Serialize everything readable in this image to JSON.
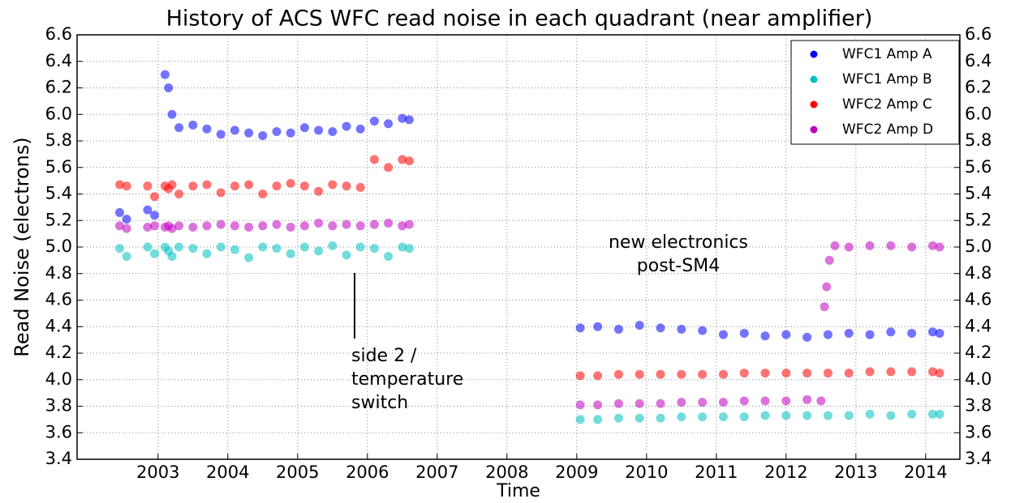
{
  "chart_data": {
    "type": "scatter",
    "title": "History of ACS WFC read noise in each quadrant (near amplifier)",
    "xlabel": "Time",
    "ylabel": "Read Noise (electrons)",
    "xlim": [
      2001.84,
      2014.49
    ],
    "xticks": [
      2003,
      2004,
      2005,
      2006,
      2007,
      2008,
      2009,
      2010,
      2011,
      2012,
      2013,
      2014
    ],
    "ylim": [
      3.4,
      6.6
    ],
    "yticks": [
      3.4,
      3.6,
      3.8,
      {
        "value": 4,
        "label": "4.0"
      },
      4.2,
      4.4,
      4.6,
      4.8,
      {
        "value": 5,
        "label": "5.0"
      },
      5.2,
      5.4,
      5.6,
      5.8,
      {
        "value": 6,
        "label": "6.0"
      },
      6.2,
      6.4,
      6.6
    ],
    "y2lim": [
      3.4,
      6.6
    ],
    "y2ticks": [
      3.4,
      3.6,
      3.8,
      {
        "value": 4,
        "label": "4.0"
      },
      4.2,
      4.4,
      4.6,
      4.8,
      {
        "value": 5,
        "label": "5.0"
      },
      5.2,
      5.4,
      5.6,
      5.8,
      {
        "value": 6,
        "label": "6.0"
      },
      6.2,
      6.4,
      6.6
    ],
    "grid": true,
    "legend": "upper right",
    "annotations": [
      [
        "new electronics",
        "post-SM4"
      ],
      [
        "side 2 /",
        "temperature",
        "switch"
      ]
    ],
    "series": [
      {
        "name": "WFC1 Amp A",
        "color": "#0000ff",
        "x": [
          2002.45,
          2002.55,
          2002.85,
          2002.95,
          2003.1,
          2003.15,
          2003.2,
          2003.3,
          2003.5,
          2003.7,
          2003.9,
          2004.1,
          2004.3,
          2004.5,
          2004.7,
          2004.9,
          2005.1,
          2005.3,
          2005.5,
          2005.7,
          2005.9,
          2006.1,
          2006.3,
          2006.5,
          2006.6,
          2009.05,
          2009.3,
          2009.6,
          2009.9,
          2010.2,
          2010.5,
          2010.8,
          2011.1,
          2011.4,
          2011.7,
          2012.0,
          2012.3,
          2012.6,
          2012.9,
          2013.2,
          2013.5,
          2013.8,
          2014.1,
          2014.2
        ],
        "values": [
          5.26,
          5.21,
          5.28,
          5.24,
          6.3,
          6.2,
          6.0,
          5.9,
          5.92,
          5.89,
          5.85,
          5.88,
          5.86,
          5.84,
          5.87,
          5.86,
          5.9,
          5.88,
          5.87,
          5.91,
          5.89,
          5.95,
          5.93,
          5.97,
          5.96,
          4.39,
          4.4,
          4.38,
          4.41,
          4.39,
          4.38,
          4.37,
          4.34,
          4.35,
          4.33,
          4.34,
          4.32,
          4.34,
          4.35,
          4.34,
          4.36,
          4.35,
          4.36,
          4.35
        ]
      },
      {
        "name": "WFC1 Amp B",
        "color": "#00bfbf",
        "x": [
          2002.45,
          2002.55,
          2002.85,
          2002.95,
          2003.1,
          2003.15,
          2003.2,
          2003.3,
          2003.5,
          2003.7,
          2003.9,
          2004.1,
          2004.3,
          2004.5,
          2004.7,
          2004.9,
          2005.1,
          2005.3,
          2005.5,
          2005.7,
          2005.9,
          2006.1,
          2006.3,
          2006.5,
          2006.6,
          2009.05,
          2009.3,
          2009.6,
          2009.9,
          2010.2,
          2010.5,
          2010.8,
          2011.1,
          2011.4,
          2011.7,
          2012.0,
          2012.3,
          2012.6,
          2012.9,
          2013.2,
          2013.5,
          2013.8,
          2014.1,
          2014.2
        ],
        "values": [
          4.99,
          4.93,
          5.0,
          4.95,
          5.0,
          4.97,
          4.93,
          5.0,
          4.99,
          4.95,
          5.0,
          4.98,
          4.92,
          5.0,
          4.99,
          4.95,
          5.0,
          4.97,
          5.01,
          4.94,
          5.0,
          4.99,
          4.93,
          5.0,
          4.99,
          3.7,
          3.7,
          3.71,
          3.71,
          3.71,
          3.72,
          3.72,
          3.72,
          3.72,
          3.73,
          3.73,
          3.73,
          3.73,
          3.73,
          3.74,
          3.73,
          3.74,
          3.74,
          3.74
        ]
      },
      {
        "name": "WFC2 Amp C",
        "color": "#ff0000",
        "x": [
          2002.45,
          2002.55,
          2002.85,
          2002.95,
          2003.1,
          2003.15,
          2003.2,
          2003.3,
          2003.5,
          2003.7,
          2003.9,
          2004.1,
          2004.3,
          2004.5,
          2004.7,
          2004.9,
          2005.1,
          2005.3,
          2005.5,
          2005.7,
          2005.9,
          2006.1,
          2006.3,
          2006.5,
          2006.6,
          2009.05,
          2009.3,
          2009.6,
          2009.9,
          2010.2,
          2010.5,
          2010.8,
          2011.1,
          2011.4,
          2011.7,
          2012.0,
          2012.3,
          2012.6,
          2012.9,
          2013.2,
          2013.5,
          2013.8,
          2014.1,
          2014.2
        ],
        "values": [
          5.47,
          5.46,
          5.46,
          5.38,
          5.46,
          5.44,
          5.47,
          5.4,
          5.46,
          5.47,
          5.41,
          5.46,
          5.47,
          5.4,
          5.46,
          5.48,
          5.46,
          5.42,
          5.47,
          5.46,
          5.45,
          5.66,
          5.6,
          5.66,
          5.65,
          4.03,
          4.03,
          4.04,
          4.04,
          4.04,
          4.04,
          4.04,
          4.04,
          4.05,
          4.05,
          4.05,
          4.05,
          4.05,
          4.05,
          4.06,
          4.06,
          4.06,
          4.06,
          4.05
        ]
      },
      {
        "name": "WFC2 Amp D",
        "color": "#bf00bf",
        "x": [
          2002.45,
          2002.55,
          2002.85,
          2002.95,
          2003.1,
          2003.15,
          2003.2,
          2003.3,
          2003.5,
          2003.7,
          2003.9,
          2004.1,
          2004.3,
          2004.5,
          2004.7,
          2004.9,
          2005.1,
          2005.3,
          2005.5,
          2005.7,
          2005.9,
          2006.1,
          2006.3,
          2006.5,
          2006.6,
          2009.05,
          2009.3,
          2009.6,
          2009.9,
          2010.2,
          2010.5,
          2010.8,
          2011.1,
          2011.4,
          2011.7,
          2012.0,
          2012.3,
          2012.5,
          2012.55,
          2012.58,
          2012.62,
          2012.7,
          2012.9,
          2013.2,
          2013.5,
          2013.8,
          2014.1,
          2014.2
        ],
        "values": [
          5.16,
          5.14,
          5.15,
          5.16,
          5.15,
          5.16,
          5.14,
          5.16,
          5.15,
          5.16,
          5.17,
          5.16,
          5.15,
          5.16,
          5.17,
          5.15,
          5.16,
          5.18,
          5.16,
          5.17,
          5.16,
          5.17,
          5.18,
          5.16,
          5.17,
          3.81,
          3.81,
          3.82,
          3.82,
          3.82,
          3.83,
          3.83,
          3.83,
          3.84,
          3.84,
          3.84,
          3.85,
          3.84,
          4.55,
          4.7,
          4.9,
          5.01,
          5.0,
          5.01,
          5.01,
          5.0,
          5.01,
          5.0
        ]
      }
    ]
  }
}
